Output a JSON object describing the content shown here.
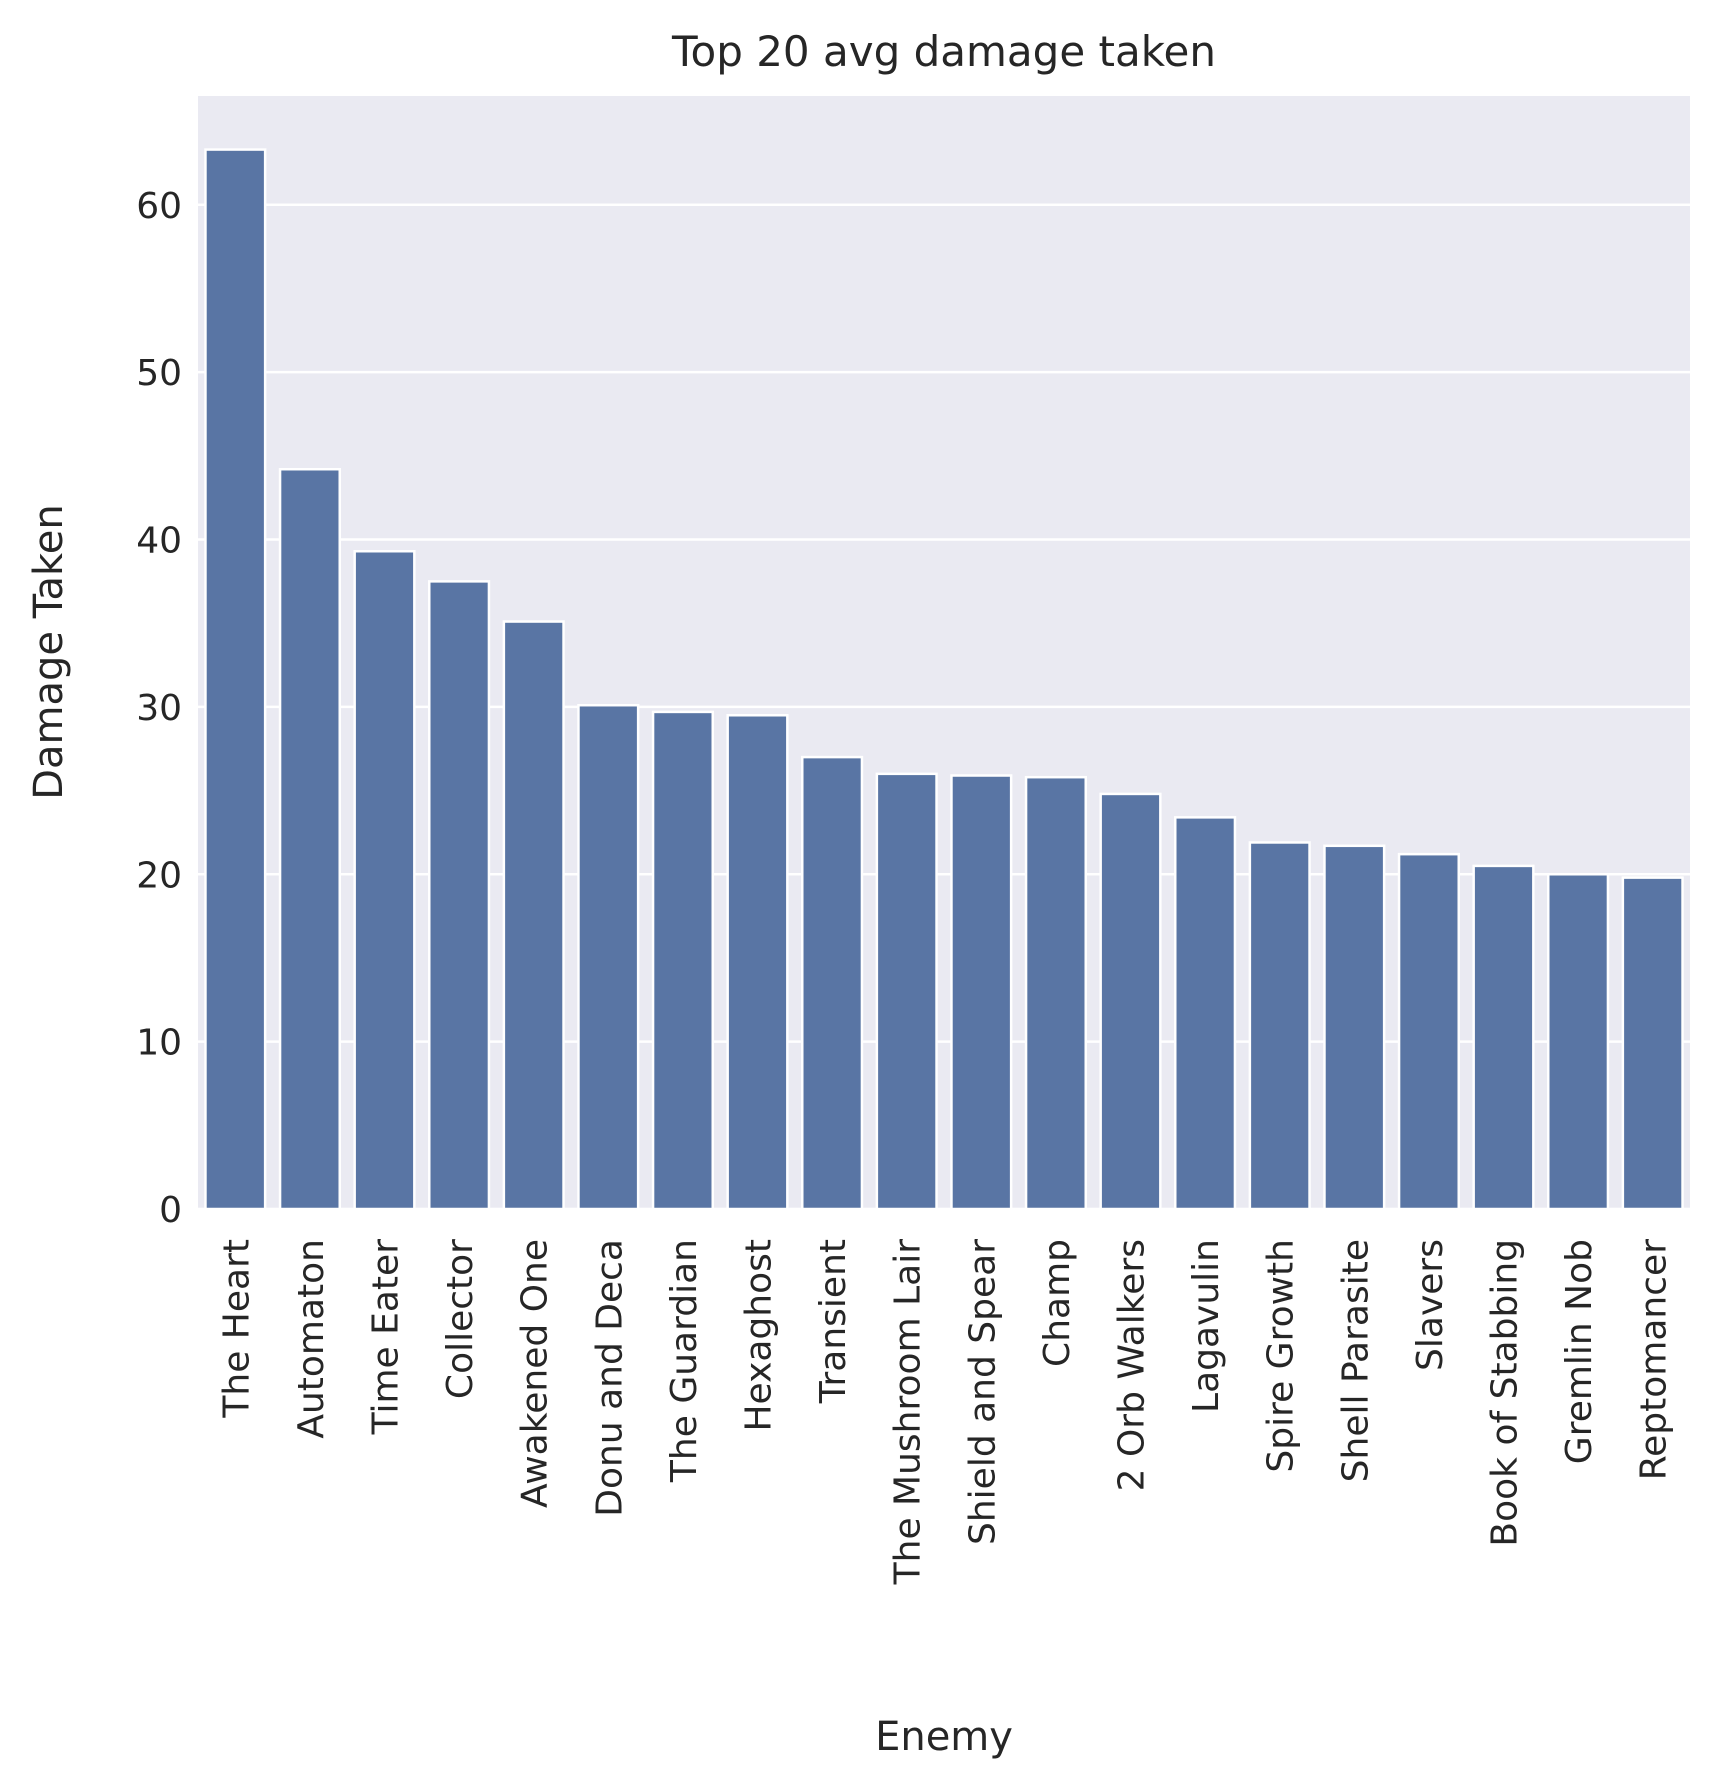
{
  "chart_data": {
    "type": "bar",
    "title": "Top 20 avg damage taken",
    "xlabel": "Enemy",
    "ylabel": "Damage Taken",
    "categories": [
      "The Heart",
      "Automaton",
      "Time Eater",
      "Collector",
      "Awakened One",
      "Donu and Deca",
      "The Guardian",
      "Hexaghost",
      "Transient",
      "The Mushroom Lair",
      "Shield and Spear",
      "Champ",
      "2 Orb Walkers",
      "Lagavulin",
      "Spire Growth",
      "Shell Parasite",
      "Slavers",
      "Book of Stabbing",
      "Gremlin Nob",
      "Reptomancer"
    ],
    "values": [
      63.3,
      44.2,
      39.3,
      37.5,
      35.1,
      30.1,
      29.7,
      29.5,
      27.0,
      26.0,
      25.9,
      25.8,
      24.8,
      23.4,
      21.9,
      21.7,
      21.2,
      20.5,
      20.0,
      19.8
    ],
    "ylim": [
      0,
      66.5
    ],
    "yticks": [
      0,
      10,
      20,
      30,
      40,
      50,
      60
    ],
    "grid": true,
    "colors": {
      "bar": "#5975a4",
      "background": "#eaeaf2",
      "grid": "#ffffff"
    }
  }
}
